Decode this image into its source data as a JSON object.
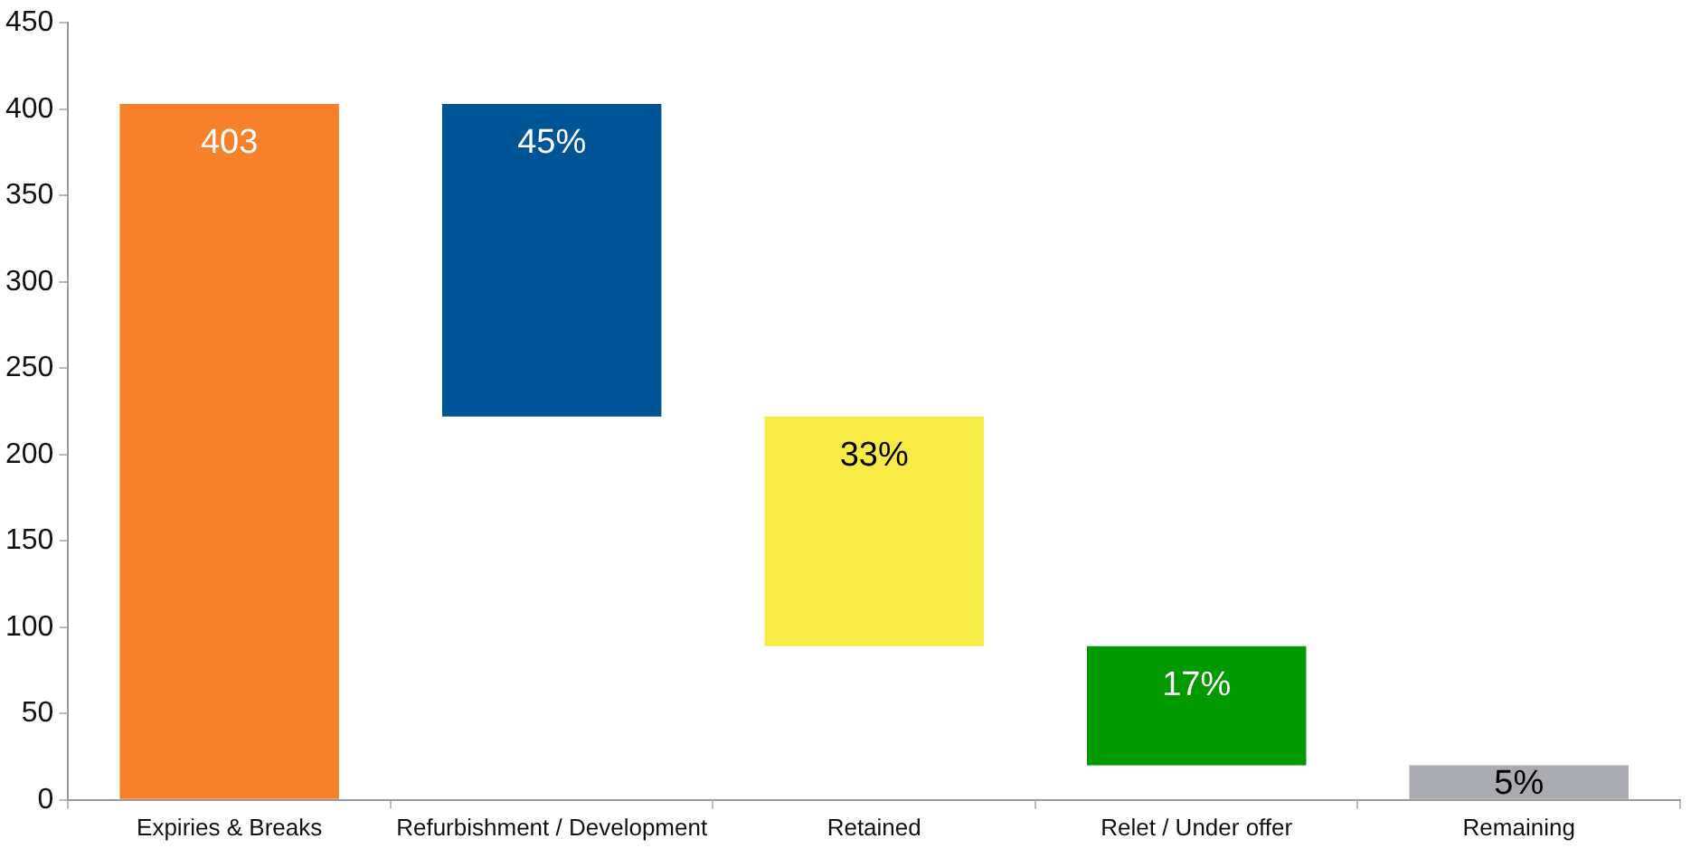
{
  "chart_data": {
    "type": "bar",
    "categories": [
      "Expiries & Breaks",
      "Refurbishment / Development",
      "Retained",
      "Relet / Under offer",
      "Remaining"
    ],
    "values": [
      403,
      181,
      133,
      69,
      20
    ],
    "base": [
      0,
      222,
      89,
      20,
      0
    ],
    "colors": [
      "#f7812a",
      "#005597",
      "#f6eb45",
      "#009a00",
      "#a9abb0"
    ],
    "value_labels": [
      "403",
      null,
      null,
      null,
      null
    ],
    "annotations": [
      {
        "text": "45%",
        "x": "Refurbishment / Development",
        "y": 403
      },
      {
        "text": "33%",
        "x": "Retained",
        "y": 222
      },
      {
        "text": "17%",
        "x": "Relet / Under offer",
        "y": 89
      },
      {
        "text": "5%",
        "x": "Remaining",
        "y": 20
      }
    ],
    "ylim": [
      0,
      450
    ],
    "yticks": [
      0,
      50,
      100,
      150,
      200,
      250,
      300,
      350,
      400,
      450
    ],
    "grid": false,
    "legend": false
  }
}
